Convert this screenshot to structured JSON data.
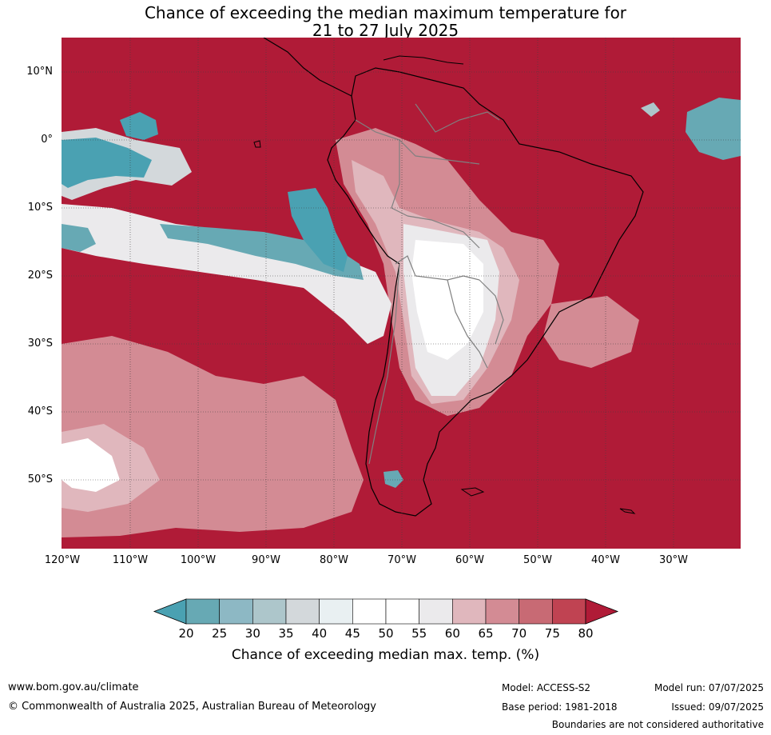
{
  "title_line1": "Chance of exceeding the median maximum temperature for",
  "title_line2": "21 to 27 July 2025",
  "lat_labels": [
    "10°N",
    "0°",
    "10°S",
    "20°S",
    "30°S",
    "40°S",
    "50°S"
  ],
  "lon_labels": [
    "120°W",
    "110°W",
    "100°W",
    "90°W",
    "80°W",
    "70°W",
    "60°W",
    "50°W",
    "40°W",
    "30°W"
  ],
  "colorbar": {
    "ticks": [
      "20",
      "25",
      "30",
      "35",
      "40",
      "45",
      "50",
      "55",
      "60",
      "65",
      "70",
      "75",
      "80"
    ],
    "colors": [
      "#67a9b4",
      "#8db8c4",
      "#adc6cb",
      "#d3d8db",
      "#e9f0f2",
      "#ffffff",
      "#ffffff",
      "#ebeaec",
      "#e0b7bd",
      "#d38b94",
      "#c86a74",
      "#c04352"
    ],
    "under_color": "#4aa1b2",
    "over_color": "#b01b37",
    "label": "Chance of exceeding median max. temp. (%)"
  },
  "map_colors": {
    "base": "#b01b37",
    "land_outline": "#000000",
    "border": "#808080"
  },
  "footer": {
    "website": "www.bom.gov.au/climate",
    "copyright": "© Commonwealth of Australia 2025, Australian Bureau of Meteorology",
    "model": "Model: ACCESS-S2",
    "base_period": "Base period: 1981-2018",
    "model_run": "Model run: 07/07/2025",
    "issued": "Issued: 09/07/2025",
    "disclaimer": "Boundaries are not considered authoritative"
  }
}
